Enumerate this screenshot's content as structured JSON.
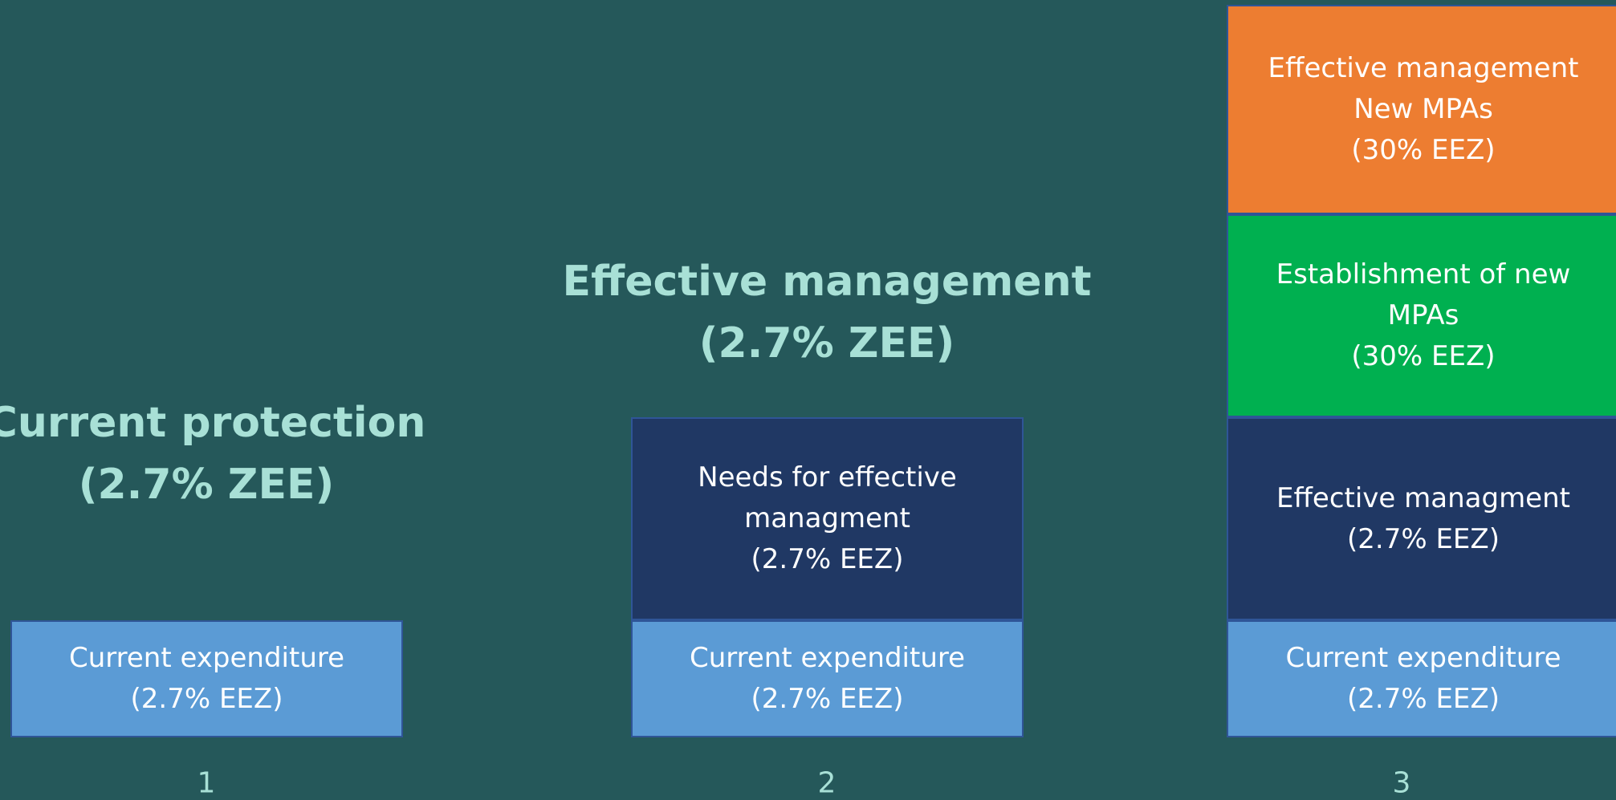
{
  "columns": [
    {
      "number": "1",
      "title": [
        "Current protection",
        "(2.7% ZEE)"
      ],
      "blocks": [
        {
          "lines": [
            "Current expenditure",
            "(2.7% EEZ)"
          ]
        }
      ]
    },
    {
      "number": "2",
      "title": [
        "Effective management",
        "(2.7% ZEE)"
      ],
      "blocks": [
        {
          "lines": [
            "Needs for effective",
            "managment",
            "(2.7% EEZ)"
          ]
        },
        {
          "lines": [
            "Current expenditure",
            "(2.7% EEZ)"
          ]
        }
      ]
    },
    {
      "number": "3",
      "title": [],
      "blocks": [
        {
          "lines": [
            "Effective management",
            "New MPAs",
            "(30% EEZ)"
          ]
        },
        {
          "lines": [
            "Establishment of new",
            "MPAs",
            "(30% EEZ)"
          ]
        },
        {
          "lines": [
            "Effective managment",
            "(2.7% EEZ)"
          ]
        },
        {
          "lines": [
            "Current expenditure",
            "(2.7% EEZ)"
          ]
        }
      ]
    }
  ]
}
